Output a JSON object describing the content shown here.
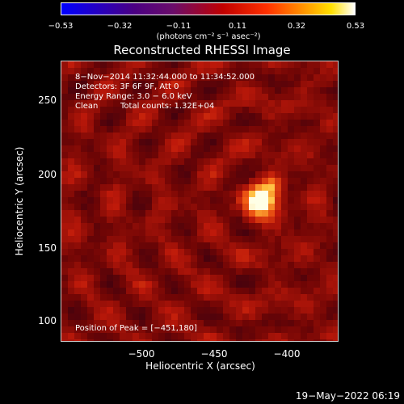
{
  "chart_data": {
    "type": "heatmap",
    "title": "Reconstructed RHESSI Image",
    "xlabel": "Heliocentric X (arcsec)",
    "ylabel": "Heliocentric Y (arcsec)",
    "xlim": [
      -545,
      -415
    ],
    "ylim": [
      85,
      275
    ],
    "x_ticks": [
      "−500",
      "−450",
      "−400"
    ],
    "y_ticks": [
      "100",
      "150",
      "200",
      "250"
    ],
    "colorbar": {
      "ticks": [
        "−0.53",
        "−0.32",
        "−0.11",
        "0.11",
        "0.32",
        "0.53"
      ],
      "range": [
        -0.53,
        0.53
      ],
      "units": "(photons cm⁻² s⁻¹ asec⁻²)"
    },
    "peak": {
      "x": -451,
      "y": 180
    }
  },
  "info": {
    "time": "8−Nov−2014 11:32:44.000 to 11:34:52.000",
    "detectors": "Detectors: 3F 6F 9F, Att 0",
    "energy": "Energy Range: 3.0 − 6.0 keV",
    "clean": "Clean",
    "counts": "Total counts: 1.32E+04",
    "peak": "Position of Peak = [−451,180]"
  },
  "timestamp": "19−May−2022 06:19"
}
